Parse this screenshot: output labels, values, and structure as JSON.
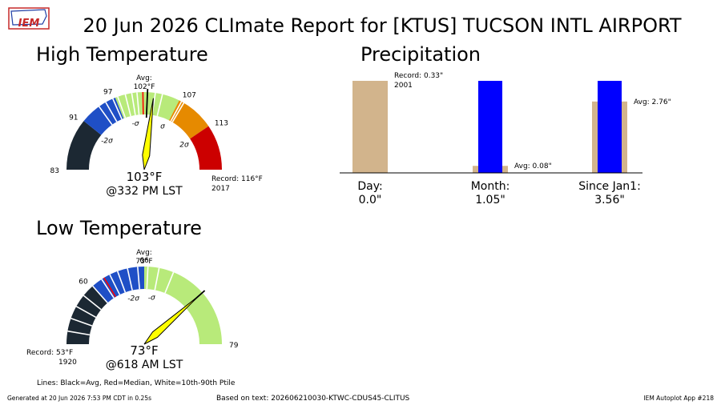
{
  "title": "20 Jun 2026 CLImate Report for [KTUS] TUCSON INTL AIRPORT",
  "logo_text": "IEM",
  "footer": {
    "generated": "Generated at 20 Jun 2026 7:53 PM CDT in 0.25s",
    "based_on": "Based on text: 202606210030-KTWC-CDUS45-CLITUS",
    "app": "IEM Autoplot App #218"
  },
  "legend_note": "Lines: Black=Avg, Red=Median, White=10th-90th Ptile",
  "colors": {
    "dark": "#1c2833",
    "blue": "#1f4fc6",
    "green": "#b8ea7a",
    "orange": "#e68a00",
    "red": "#cc0000",
    "needle": "#ffff00",
    "tan": "#d2b48c",
    "bar_blue": "#0000ff"
  },
  "chart_data": [
    {
      "type": "gauge",
      "title": "High Temperature",
      "min": 83,
      "max": 120,
      "value": 103,
      "value_label": "103°F",
      "time_label": "@332 PM LST",
      "avg": 102,
      "avg_label_top": "Avg:",
      "avg_label_bottom": "102°F",
      "median": 101.3,
      "record_line1": "Record: 116°F",
      "record_line2": "2017",
      "bands": [
        {
          "from": 83,
          "to": 91,
          "color": "dark"
        },
        {
          "from": 91,
          "to": 97,
          "color": "blue"
        },
        {
          "from": 97,
          "to": 107,
          "color": "green"
        },
        {
          "from": 107,
          "to": 113,
          "color": "orange"
        },
        {
          "from": 113,
          "to": 120,
          "color": "red"
        }
      ],
      "ticks": [
        {
          "v": 83,
          "label": "83"
        },
        {
          "v": 91,
          "label": "91"
        },
        {
          "v": 97,
          "label": "97"
        },
        {
          "v": 107,
          "label": "107"
        },
        {
          "v": 113,
          "label": "113"
        }
      ],
      "sigma_labels": [
        {
          "v": 90.8,
          "label": "-2σ"
        },
        {
          "v": 99.3,
          "label": "-σ"
        },
        {
          "v": 106.2,
          "label": "σ"
        },
        {
          "v": 113.4,
          "label": "2σ"
        }
      ],
      "white_lines": [
        94.2,
        95.4,
        96.6,
        97.4,
        98.6,
        99.6,
        100.4,
        103.2,
        104.3,
        107.4,
        107.8
      ]
    },
    {
      "type": "gauge",
      "title": "Low Temperature",
      "min": 53,
      "max": 79,
      "value": 73,
      "value_label": "73°F",
      "time_label": "@618 AM LST",
      "avg": 73,
      "avg_label_top": "Avg:",
      "avg_label_bottom": "73°F",
      "median": 61.5,
      "record_line1": "Record: 53°F",
      "record_line2": "1920",
      "bands": [
        {
          "from": 53,
          "to": 60,
          "color": "dark"
        },
        {
          "from": 60,
          "to": 66,
          "color": "blue"
        },
        {
          "from": 66,
          "to": 79,
          "color": "green"
        }
      ],
      "ticks": [
        {
          "v": 60,
          "label": "60"
        },
        {
          "v": 66,
          "label": "66"
        },
        {
          "v": 79,
          "label": "79"
        }
      ],
      "sigma_labels": [
        {
          "v": 64.1,
          "label": "-2σ"
        },
        {
          "v": 67.3,
          "label": "-σ"
        }
      ],
      "white_lines": [
        54.4,
        55.8,
        57.2,
        58.6,
        60.0,
        61.2,
        62.2,
        63.1,
        64.2,
        65.3,
        66.4,
        67.6,
        69.2
      ]
    },
    {
      "type": "bar",
      "title": "Precipitation",
      "ylim": [
        0,
        3.6
      ],
      "groups": [
        {
          "label": "Day:",
          "value_label": "0.0\"",
          "record": 0.33,
          "value": 0.0,
          "avg": null,
          "note1": "Record: 0.33\"",
          "note2": "2001",
          "avg_note": ""
        },
        {
          "label": "Month:",
          "value_label": "1.05\"",
          "record": null,
          "value": 1.05,
          "avg": 0.08,
          "note1": "",
          "note2": "",
          "avg_note": "Avg: 0.08\""
        },
        {
          "label": "Since Jan1:",
          "value_label": "3.56\"",
          "record": null,
          "value": 3.56,
          "avg": 2.76,
          "note1": "",
          "note2": "",
          "avg_note": "Avg: 2.76\""
        }
      ],
      "scales": [
        0.33,
        1.05,
        3.56
      ]
    }
  ]
}
